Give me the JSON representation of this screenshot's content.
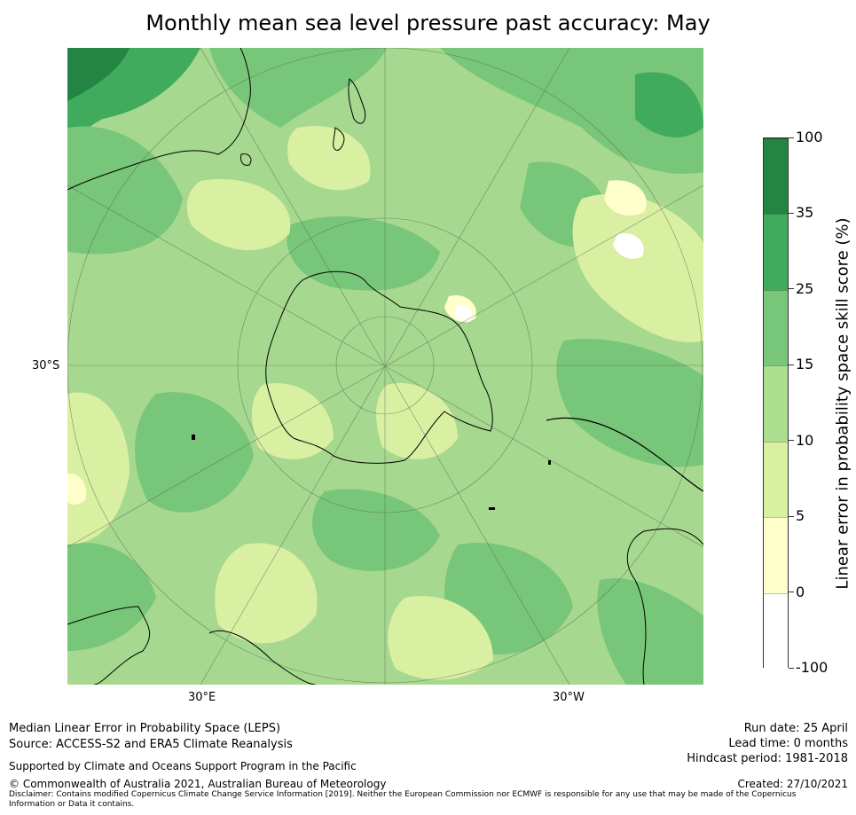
{
  "title": "Monthly mean sea level pressure past accuracy: May",
  "map": {
    "projection": "south polar stereographic",
    "lat_label": "30°S",
    "lon_labels": {
      "east": "30°E",
      "west": "30°W"
    },
    "colors": {
      "ocean_base": "#a7d88f",
      "land_outline": "#000000",
      "graticule": "#556655"
    }
  },
  "colorbar": {
    "title": "Linear error in probability space skill score (%)",
    "levels": [
      "-100",
      "0",
      "5",
      "10",
      "15",
      "25",
      "35",
      "100"
    ],
    "colors": [
      "#ffffff",
      "#ffffcc",
      "#d9f0a3",
      "#addd8e",
      "#78c679",
      "#41ab5d",
      "#238443"
    ]
  },
  "footer": {
    "method": "Median Linear Error in Probability Space (LEPS)",
    "source": "Source: ACCESS-S2 and ERA5 Climate Reanalysis",
    "support": "Supported by Climate and Oceans Support Program in the Pacific",
    "copyright": "© Commonwealth of Australia 2021, Australian Bureau of Meteorology",
    "disclaimer": "Disclaimer: Contains modified Copernicus Climate Change Service Information [2019]. Neither the European Commission nor ECMWF is responsible for any use that may be made of the Copernicus Information or Data it contains.",
    "run_date": "Run date: 25 April",
    "lead_time": "Lead time: 0 months",
    "hindcast": "Hindcast period: 1981-2018",
    "created": "Created: 27/10/2021"
  }
}
